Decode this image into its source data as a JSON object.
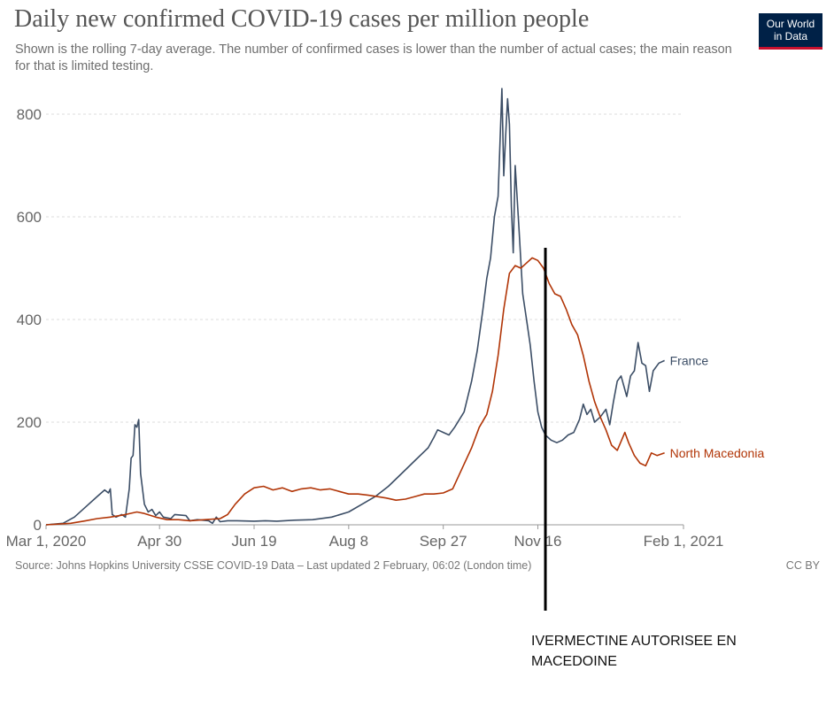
{
  "header": {
    "title": "Daily new confirmed COVID-19 cases per million people",
    "subtitle": "Shown is the rolling 7-day average. The number of confirmed cases is lower than the number of actual cases; the main reason for that is limited testing."
  },
  "logo": {
    "line1": "Our World",
    "line2": "in Data"
  },
  "footer": {
    "source": "Source: Johns Hopkins University CSSE COVID-19 Data – Last updated 2 February, 06:02 (London time)",
    "license": "CC BY"
  },
  "annotation": {
    "text": "IVERMECTINE AUTORISEE EN MACEDOINE",
    "date": "2020-11-20"
  },
  "colors": {
    "france": "#3c4e66",
    "north_macedonia": "#b13507",
    "grid": "#dddddd",
    "annotation_line": "#000000"
  },
  "chart_data": {
    "type": "line",
    "title": "Daily new confirmed COVID-19 cases per million people",
    "xlabel": "",
    "ylabel": "",
    "x_axis": "date",
    "xlim": [
      "2020-03-01",
      "2021-02-01"
    ],
    "ylim": [
      0,
      850
    ],
    "y_ticks": [
      0,
      200,
      400,
      600,
      800
    ],
    "x_ticks": [
      {
        "date": "2020-03-01",
        "label": "Mar 1, 2020"
      },
      {
        "date": "2020-04-30",
        "label": "Apr 30"
      },
      {
        "date": "2020-06-19",
        "label": "Jun 19"
      },
      {
        "date": "2020-08-08",
        "label": "Aug 8"
      },
      {
        "date": "2020-09-27",
        "label": "Sep 27"
      },
      {
        "date": "2020-11-16",
        "label": "Nov 16"
      },
      {
        "date": "2021-02-01",
        "label": "Feb 1, 2021"
      }
    ],
    "grid": true,
    "series": [
      {
        "name": "France",
        "color": "#3c4e66",
        "points": [
          [
            "2020-03-01",
            0
          ],
          [
            "2020-03-10",
            3
          ],
          [
            "2020-03-16",
            15
          ],
          [
            "2020-03-22",
            35
          ],
          [
            "2020-03-28",
            55
          ],
          [
            "2020-04-01",
            68
          ],
          [
            "2020-04-03",
            62
          ],
          [
            "2020-04-04",
            70
          ],
          [
            "2020-04-05",
            20
          ],
          [
            "2020-04-07",
            15
          ],
          [
            "2020-04-10",
            20
          ],
          [
            "2020-04-12",
            15
          ],
          [
            "2020-04-14",
            70
          ],
          [
            "2020-04-15",
            130
          ],
          [
            "2020-04-16",
            135
          ],
          [
            "2020-04-17",
            195
          ],
          [
            "2020-04-18",
            190
          ],
          [
            "2020-04-19",
            205
          ],
          [
            "2020-04-20",
            100
          ],
          [
            "2020-04-22",
            40
          ],
          [
            "2020-04-24",
            25
          ],
          [
            "2020-04-26",
            30
          ],
          [
            "2020-04-28",
            18
          ],
          [
            "2020-04-30",
            25
          ],
          [
            "2020-05-02",
            15
          ],
          [
            "2020-05-06",
            12
          ],
          [
            "2020-05-08",
            20
          ],
          [
            "2020-05-14",
            18
          ],
          [
            "2020-05-16",
            8
          ],
          [
            "2020-05-20",
            10
          ],
          [
            "2020-05-26",
            8
          ],
          [
            "2020-05-28",
            3
          ],
          [
            "2020-05-30",
            15
          ],
          [
            "2020-06-01",
            6
          ],
          [
            "2020-06-05",
            8
          ],
          [
            "2020-06-10",
            8
          ],
          [
            "2020-06-19",
            7
          ],
          [
            "2020-06-25",
            8
          ],
          [
            "2020-07-01",
            7
          ],
          [
            "2020-07-10",
            9
          ],
          [
            "2020-07-20",
            10
          ],
          [
            "2020-07-30",
            15
          ],
          [
            "2020-08-08",
            25
          ],
          [
            "2020-08-15",
            40
          ],
          [
            "2020-08-22",
            55
          ],
          [
            "2020-08-29",
            75
          ],
          [
            "2020-09-05",
            100
          ],
          [
            "2020-09-12",
            125
          ],
          [
            "2020-09-19",
            150
          ],
          [
            "2020-09-22",
            170
          ],
          [
            "2020-09-24",
            185
          ],
          [
            "2020-09-27",
            180
          ],
          [
            "2020-09-30",
            175
          ],
          [
            "2020-10-03",
            190
          ],
          [
            "2020-10-08",
            220
          ],
          [
            "2020-10-12",
            280
          ],
          [
            "2020-10-15",
            340
          ],
          [
            "2020-10-18",
            420
          ],
          [
            "2020-10-20",
            480
          ],
          [
            "2020-10-22",
            520
          ],
          [
            "2020-10-24",
            600
          ],
          [
            "2020-10-26",
            640
          ],
          [
            "2020-10-28",
            850
          ],
          [
            "2020-10-29",
            680
          ],
          [
            "2020-10-30",
            760
          ],
          [
            "2020-10-31",
            830
          ],
          [
            "2020-11-01",
            780
          ],
          [
            "2020-11-02",
            620
          ],
          [
            "2020-11-03",
            530
          ],
          [
            "2020-11-04",
            700
          ],
          [
            "2020-11-06",
            580
          ],
          [
            "2020-11-08",
            450
          ],
          [
            "2020-11-10",
            400
          ],
          [
            "2020-11-12",
            350
          ],
          [
            "2020-11-14",
            280
          ],
          [
            "2020-11-16",
            220
          ],
          [
            "2020-11-18",
            190
          ],
          [
            "2020-11-20",
            175
          ],
          [
            "2020-11-23",
            165
          ],
          [
            "2020-11-26",
            160
          ],
          [
            "2020-11-29",
            165
          ],
          [
            "2020-12-02",
            175
          ],
          [
            "2020-12-05",
            180
          ],
          [
            "2020-12-08",
            205
          ],
          [
            "2020-12-10",
            235
          ],
          [
            "2020-12-12",
            215
          ],
          [
            "2020-12-14",
            225
          ],
          [
            "2020-12-16",
            200
          ],
          [
            "2020-12-19",
            210
          ],
          [
            "2020-12-22",
            225
          ],
          [
            "2020-12-24",
            195
          ],
          [
            "2020-12-26",
            240
          ],
          [
            "2020-12-28",
            280
          ],
          [
            "2020-12-30",
            290
          ],
          [
            "2021-01-02",
            250
          ],
          [
            "2021-01-04",
            290
          ],
          [
            "2021-01-06",
            300
          ],
          [
            "2021-01-08",
            355
          ],
          [
            "2021-01-10",
            315
          ],
          [
            "2021-01-12",
            310
          ],
          [
            "2021-01-14",
            260
          ],
          [
            "2021-01-16",
            300
          ],
          [
            "2021-01-19",
            315
          ],
          [
            "2021-01-22",
            320
          ]
        ]
      },
      {
        "name": "North Macedonia",
        "color": "#b13507",
        "points": [
          [
            "2020-03-01",
            0
          ],
          [
            "2020-03-14",
            3
          ],
          [
            "2020-03-22",
            8
          ],
          [
            "2020-03-28",
            12
          ],
          [
            "2020-04-04",
            15
          ],
          [
            "2020-04-12",
            20
          ],
          [
            "2020-04-18",
            25
          ],
          [
            "2020-04-22",
            22
          ],
          [
            "2020-04-28",
            15
          ],
          [
            "2020-05-04",
            10
          ],
          [
            "2020-05-10",
            10
          ],
          [
            "2020-05-16",
            8
          ],
          [
            "2020-05-24",
            10
          ],
          [
            "2020-06-01",
            12
          ],
          [
            "2020-06-05",
            20
          ],
          [
            "2020-06-09",
            40
          ],
          [
            "2020-06-14",
            60
          ],
          [
            "2020-06-19",
            72
          ],
          [
            "2020-06-24",
            75
          ],
          [
            "2020-06-29",
            68
          ],
          [
            "2020-07-04",
            72
          ],
          [
            "2020-07-09",
            65
          ],
          [
            "2020-07-14",
            70
          ],
          [
            "2020-07-19",
            72
          ],
          [
            "2020-07-24",
            68
          ],
          [
            "2020-07-29",
            70
          ],
          [
            "2020-08-03",
            65
          ],
          [
            "2020-08-08",
            60
          ],
          [
            "2020-08-13",
            60
          ],
          [
            "2020-08-18",
            58
          ],
          [
            "2020-08-23",
            55
          ],
          [
            "2020-08-28",
            52
          ],
          [
            "2020-09-02",
            48
          ],
          [
            "2020-09-07",
            50
          ],
          [
            "2020-09-12",
            55
          ],
          [
            "2020-09-17",
            60
          ],
          [
            "2020-09-22",
            60
          ],
          [
            "2020-09-27",
            62
          ],
          [
            "2020-10-02",
            70
          ],
          [
            "2020-10-07",
            110
          ],
          [
            "2020-10-12",
            150
          ],
          [
            "2020-10-16",
            190
          ],
          [
            "2020-10-20",
            215
          ],
          [
            "2020-10-23",
            260
          ],
          [
            "2020-10-26",
            330
          ],
          [
            "2020-10-29",
            420
          ],
          [
            "2020-11-01",
            490
          ],
          [
            "2020-11-04",
            505
          ],
          [
            "2020-11-07",
            500
          ],
          [
            "2020-11-10",
            510
          ],
          [
            "2020-11-13",
            520
          ],
          [
            "2020-11-16",
            515
          ],
          [
            "2020-11-19",
            500
          ],
          [
            "2020-11-22",
            470
          ],
          [
            "2020-11-25",
            450
          ],
          [
            "2020-11-28",
            445
          ],
          [
            "2020-12-01",
            420
          ],
          [
            "2020-12-04",
            390
          ],
          [
            "2020-12-07",
            370
          ],
          [
            "2020-12-10",
            330
          ],
          [
            "2020-12-13",
            280
          ],
          [
            "2020-12-16",
            240
          ],
          [
            "2020-12-19",
            210
          ],
          [
            "2020-12-22",
            185
          ],
          [
            "2020-12-25",
            155
          ],
          [
            "2020-12-28",
            145
          ],
          [
            "2021-01-01",
            180
          ],
          [
            "2021-01-03",
            160
          ],
          [
            "2021-01-06",
            135
          ],
          [
            "2021-01-09",
            120
          ],
          [
            "2021-01-12",
            115
          ],
          [
            "2021-01-15",
            140
          ],
          [
            "2021-01-18",
            135
          ],
          [
            "2021-01-22",
            140
          ]
        ]
      }
    ]
  }
}
